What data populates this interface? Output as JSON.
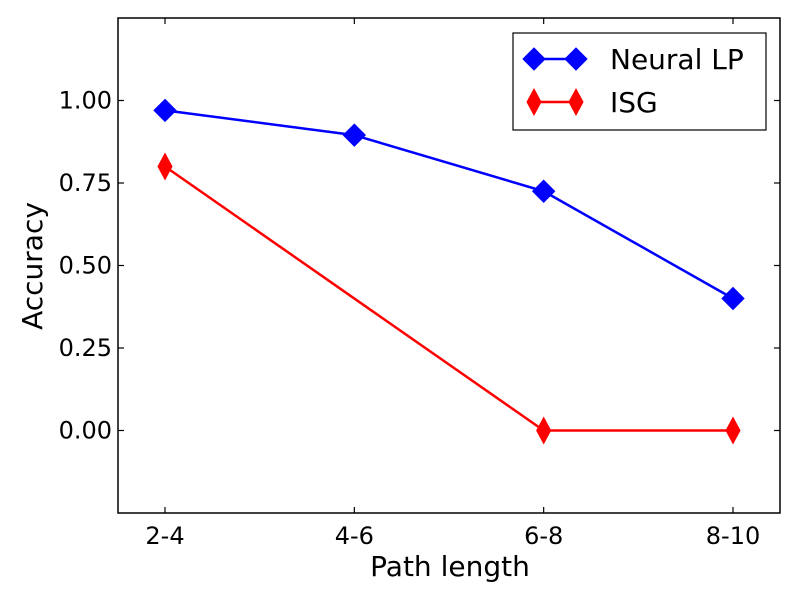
{
  "chart_data": {
    "type": "line",
    "categories": [
      "2-4",
      "4-6",
      "6-8",
      "8-10"
    ],
    "series": [
      {
        "name": "Neural LP",
        "values": [
          0.97,
          0.895,
          0.725,
          0.4
        ],
        "color": "#0000ff",
        "marker": "diamond"
      },
      {
        "name": "ISG",
        "values": [
          0.8,
          null,
          0.0,
          0.0
        ],
        "color": "#ff0000",
        "marker": "thin-diamond"
      }
    ],
    "title": "",
    "xlabel": "Path length",
    "ylabel": "Accuracy",
    "ylim": [
      -0.25,
      1.25
    ],
    "yticks": [
      "0.00",
      "0.25",
      "0.50",
      "0.75",
      "1.00"
    ],
    "grid": false,
    "legend_position": "top-right"
  }
}
